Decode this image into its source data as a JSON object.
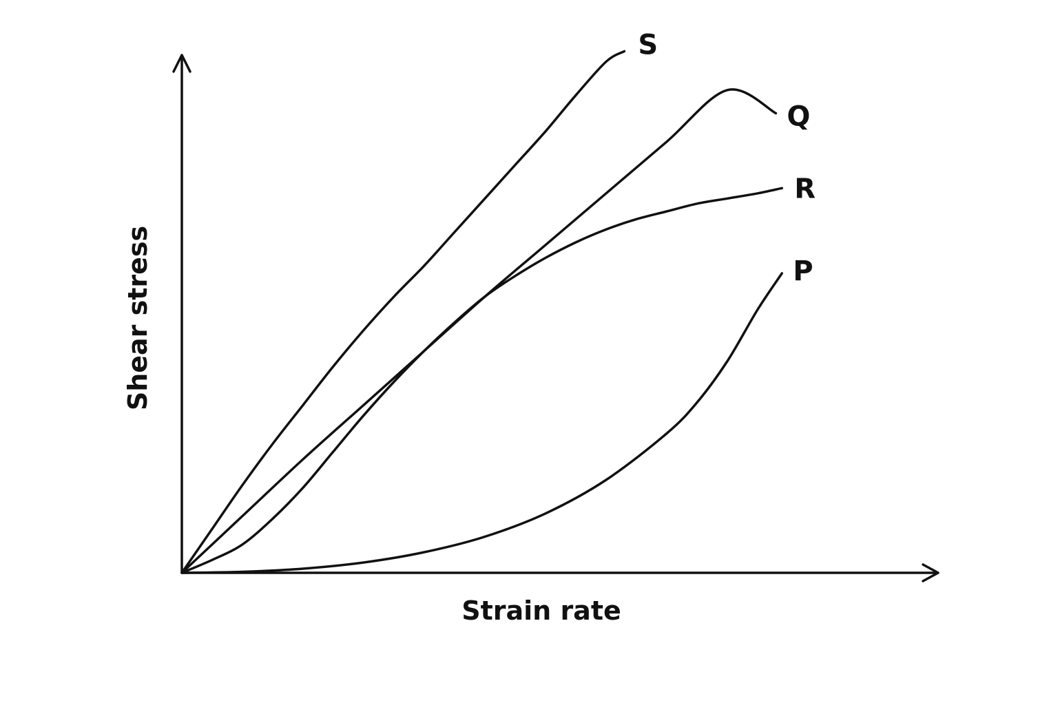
{
  "chart_data": {
    "type": "line",
    "xlabel": "Strain rate",
    "ylabel": "Shear stress",
    "xlim": [
      0,
      100
    ],
    "ylim": [
      0,
      100
    ],
    "grid": false,
    "legend": "inline-end-labels",
    "series": [
      {
        "name": "S",
        "x": [
          0,
          5,
          10,
          15,
          20,
          25,
          30,
          35,
          40,
          45,
          50,
          55,
          60,
          65,
          70,
          73
        ],
        "y": [
          0,
          8.5,
          17,
          25,
          32.5,
          40,
          47,
          53.5,
          59.5,
          66,
          72.5,
          79,
          85.5,
          92.5,
          99,
          101
        ]
      },
      {
        "name": "Q",
        "x": [
          0,
          10,
          20,
          30,
          40,
          50,
          60,
          70,
          80,
          90,
          98
        ],
        "y": [
          0,
          11,
          22,
          32.5,
          43,
          53.5,
          63.5,
          73.5,
          83.5,
          93.5,
          89
        ]
      },
      {
        "name": "R",
        "x": [
          0,
          5,
          10,
          15,
          20,
          25,
          30,
          35,
          40,
          45,
          50,
          55,
          60,
          65,
          70,
          75,
          80,
          85,
          90,
          95,
          99
        ],
        "y": [
          0,
          2.5,
          5.5,
          10.5,
          16.5,
          23.5,
          30.5,
          37,
          43,
          48.5,
          53.5,
          57.5,
          61,
          64,
          66.5,
          68.5,
          70,
          71.5,
          72.5,
          73.5,
          74.5
        ]
      },
      {
        "name": "P",
        "x": [
          0,
          10,
          20,
          30,
          40,
          50,
          60,
          70,
          80,
          85,
          90,
          95,
          99
        ],
        "y": [
          0,
          0.2,
          0.8,
          2,
          4,
          7,
          11.5,
          18,
          27,
          33,
          41,
          51,
          58
        ]
      }
    ]
  },
  "colors": {
    "line": "#111111",
    "background": "#ffffff"
  }
}
